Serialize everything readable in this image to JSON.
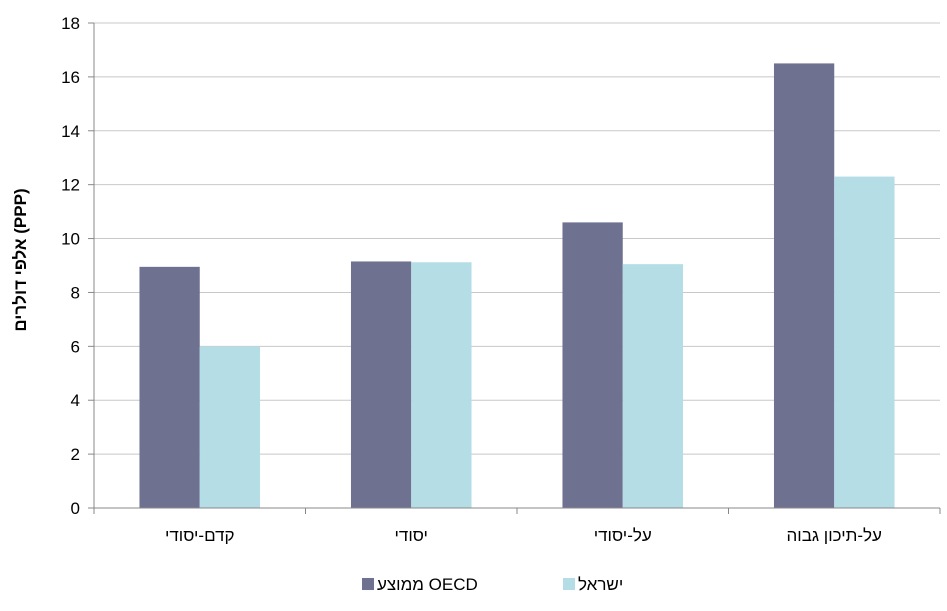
{
  "chart_data": {
    "type": "bar",
    "categories": [
      "קדם-יסודי",
      "יסודי",
      "על-יסודי",
      "על-תיכון גבוה"
    ],
    "series": [
      {
        "name": "ממוצע OECD",
        "values": [
          8.95,
          9.15,
          10.6,
          16.5
        ],
        "color": "#6e7190"
      },
      {
        "name": "ישראל",
        "values": [
          6.0,
          9.12,
          9.05,
          12.3
        ],
        "color": "#b5dde6"
      }
    ],
    "ylabel": "אלפי דולרים (PPP)",
    "xlabel": "",
    "ylim": [
      0,
      18
    ],
    "yticks": [
      0,
      2,
      4,
      6,
      8,
      10,
      12,
      14,
      16,
      18
    ],
    "grid": true,
    "legend": "bottom",
    "colors": {
      "grid": "#c8c8c8",
      "axis": "#888888",
      "text": "#000000"
    }
  }
}
